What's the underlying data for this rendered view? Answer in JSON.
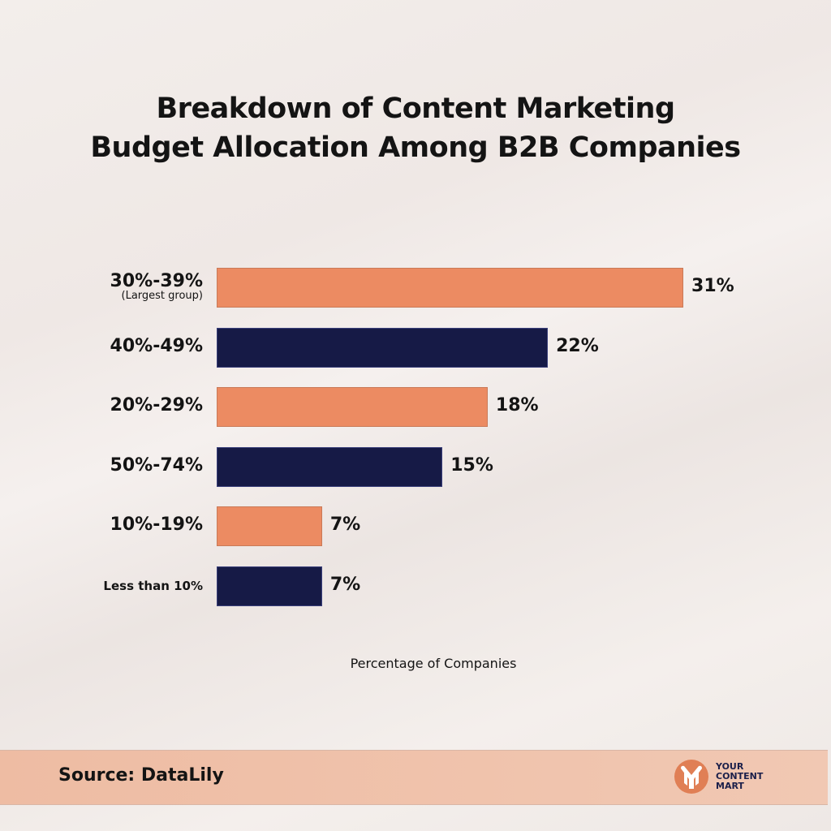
{
  "chart_data": {
    "type": "bar",
    "orientation": "horizontal",
    "title": "Breakdown of Content Marketing Budget Allocation Among B2B Companies",
    "title_lines": [
      "Breakdown of Content Marketing",
      "Budget Allocation Among B2B Companies"
    ],
    "xlabel": "Percentage of Companies",
    "categories": [
      {
        "label": "30%-39%",
        "sub": "(Largest group)"
      },
      {
        "label": "40%-49%"
      },
      {
        "label": "20%-29%"
      },
      {
        "label": "50%-74%"
      },
      {
        "label": "10%-19%"
      },
      {
        "label": "Less than 10%"
      }
    ],
    "values": [
      31,
      22,
      18,
      15,
      7,
      7
    ],
    "value_labels": [
      "31%",
      "22%",
      "18%",
      "15%",
      "7%",
      "7%"
    ],
    "colors": [
      "#ec8b62",
      "#161a46",
      "#ec8b62",
      "#161a46",
      "#ec8b62",
      "#161a46"
    ],
    "grid": false,
    "legend": "none"
  },
  "footer": {
    "source": "Source: DataLily",
    "logo_text": [
      "YOUR",
      "CONTENT",
      "MART"
    ],
    "logo_color": "#e07f55"
  }
}
